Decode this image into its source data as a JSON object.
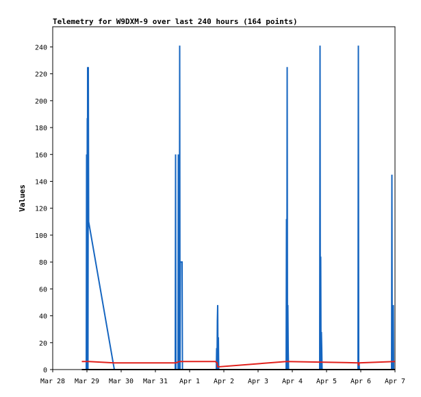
{
  "chart_data": {
    "type": "line",
    "title": "Telemetry for W9DXM-9 over last 240 hours (164 points)",
    "xlabel": "",
    "ylabel": "Values",
    "x_ticks": [
      "Mar 28",
      "Mar 29",
      "Mar 30",
      "Mar 31",
      "Apr 1",
      "Apr 2",
      "Apr 3",
      "Apr 4",
      "Apr 5",
      "Apr 6",
      "Apr 7"
    ],
    "xlim": [
      0,
      10
    ],
    "ylim": [
      0,
      255
    ],
    "y_ticks": [
      0,
      20,
      40,
      60,
      80,
      100,
      120,
      140,
      160,
      180,
      200,
      220,
      240
    ],
    "grid": false,
    "colors": {
      "blue": "#1565c0",
      "red": "#e0201b",
      "black": "#000000"
    },
    "series": [
      {
        "color": "#1565c0",
        "points": [
          [
            0.85,
            0
          ],
          [
            0.98,
            0
          ],
          [
            0.99,
            160
          ],
          [
            1.0,
            0
          ],
          [
            1.01,
            187
          ],
          [
            1.015,
            38
          ],
          [
            1.02,
            225
          ],
          [
            1.03,
            0
          ],
          [
            1.04,
            225
          ],
          [
            1.05,
            110
          ],
          [
            1.8,
            0
          ],
          [
            3.5,
            0
          ],
          [
            3.58,
            0
          ],
          [
            3.59,
            160
          ],
          [
            3.6,
            0
          ],
          [
            3.66,
            0
          ],
          [
            3.67,
            160
          ],
          [
            3.68,
            0
          ],
          [
            3.7,
            0
          ],
          [
            3.71,
            241
          ],
          [
            3.72,
            0
          ],
          [
            3.73,
            80
          ],
          [
            3.78,
            80
          ],
          [
            3.79,
            0
          ],
          [
            4.78,
            0
          ],
          [
            4.79,
            16
          ],
          [
            4.8,
            0
          ],
          [
            4.81,
            36
          ],
          [
            4.82,
            48
          ],
          [
            4.83,
            0
          ],
          [
            4.84,
            24
          ],
          [
            4.85,
            0
          ],
          [
            6.82,
            0
          ],
          [
            6.83,
            112
          ],
          [
            6.84,
            0
          ],
          [
            6.85,
            225
          ],
          [
            6.86,
            0
          ],
          [
            6.87,
            48
          ],
          [
            6.88,
            16
          ],
          [
            6.89,
            0
          ],
          [
            7.8,
            0
          ],
          [
            7.81,
            241
          ],
          [
            7.82,
            0
          ],
          [
            7.83,
            84
          ],
          [
            7.84,
            0
          ],
          [
            7.85,
            28
          ],
          [
            7.86,
            16
          ],
          [
            7.87,
            0
          ],
          [
            8.92,
            0
          ],
          [
            8.93,
            241
          ],
          [
            8.94,
            0
          ],
          [
            8.95,
            5
          ],
          [
            8.96,
            0
          ],
          [
            9.9,
            0
          ],
          [
            9.91,
            145
          ],
          [
            9.92,
            0
          ],
          [
            9.93,
            43
          ],
          [
            9.94,
            21
          ],
          [
            9.95,
            48
          ],
          [
            9.96,
            0
          ],
          [
            10,
            0
          ]
        ]
      },
      {
        "color": "#e0201b",
        "points": [
          [
            0.85,
            6
          ],
          [
            1.05,
            6
          ],
          [
            1.8,
            5
          ],
          [
            3.6,
            5
          ],
          [
            3.7,
            6
          ],
          [
            4.75,
            6
          ],
          [
            4.8,
            5
          ],
          [
            4.82,
            2
          ],
          [
            6.83,
            6
          ],
          [
            8.93,
            5
          ],
          [
            8.94,
            3
          ],
          [
            8.95,
            5
          ],
          [
            10,
            6
          ]
        ]
      },
      {
        "color": "#000000",
        "points": [
          [
            0.85,
            0
          ],
          [
            10,
            0
          ]
        ]
      }
    ]
  }
}
